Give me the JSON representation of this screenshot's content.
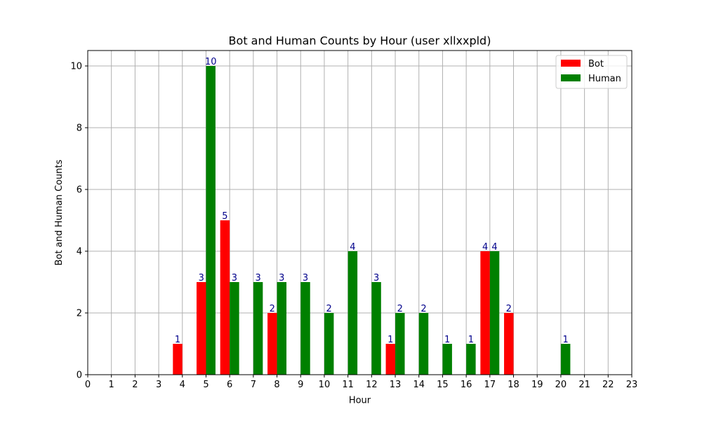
{
  "chart_data": {
    "type": "bar",
    "title": "Bot and Human Counts by Hour (user xllxxpld)",
    "xlabel": "Hour",
    "ylabel": "Bot and Human Counts",
    "x_ticks": [
      0,
      1,
      2,
      3,
      4,
      5,
      6,
      7,
      8,
      9,
      10,
      11,
      12,
      13,
      14,
      15,
      16,
      17,
      18,
      19,
      20,
      21,
      22,
      23
    ],
    "y_ticks": [
      0,
      2,
      4,
      6,
      8,
      10
    ],
    "xlim": [
      0,
      23
    ],
    "ylim": [
      0,
      10.5
    ],
    "grid": true,
    "legend_position": "top-right",
    "hours": [
      4,
      5,
      6,
      7,
      8,
      9,
      10,
      11,
      12,
      13,
      14,
      15,
      16,
      17,
      18,
      20
    ],
    "series": [
      {
        "name": "Bot",
        "color": "#ff0000",
        "values": [
          1,
          3,
          5,
          0,
          2,
          0,
          0,
          0,
          0,
          1,
          0,
          0,
          0,
          4,
          2,
          0
        ]
      },
      {
        "name": "Human",
        "color": "#008000",
        "values": [
          0,
          10,
          3,
          3,
          3,
          3,
          2,
          4,
          3,
          2,
          2,
          1,
          1,
          4,
          0,
          1
        ]
      }
    ],
    "label_color": "#00008b"
  }
}
